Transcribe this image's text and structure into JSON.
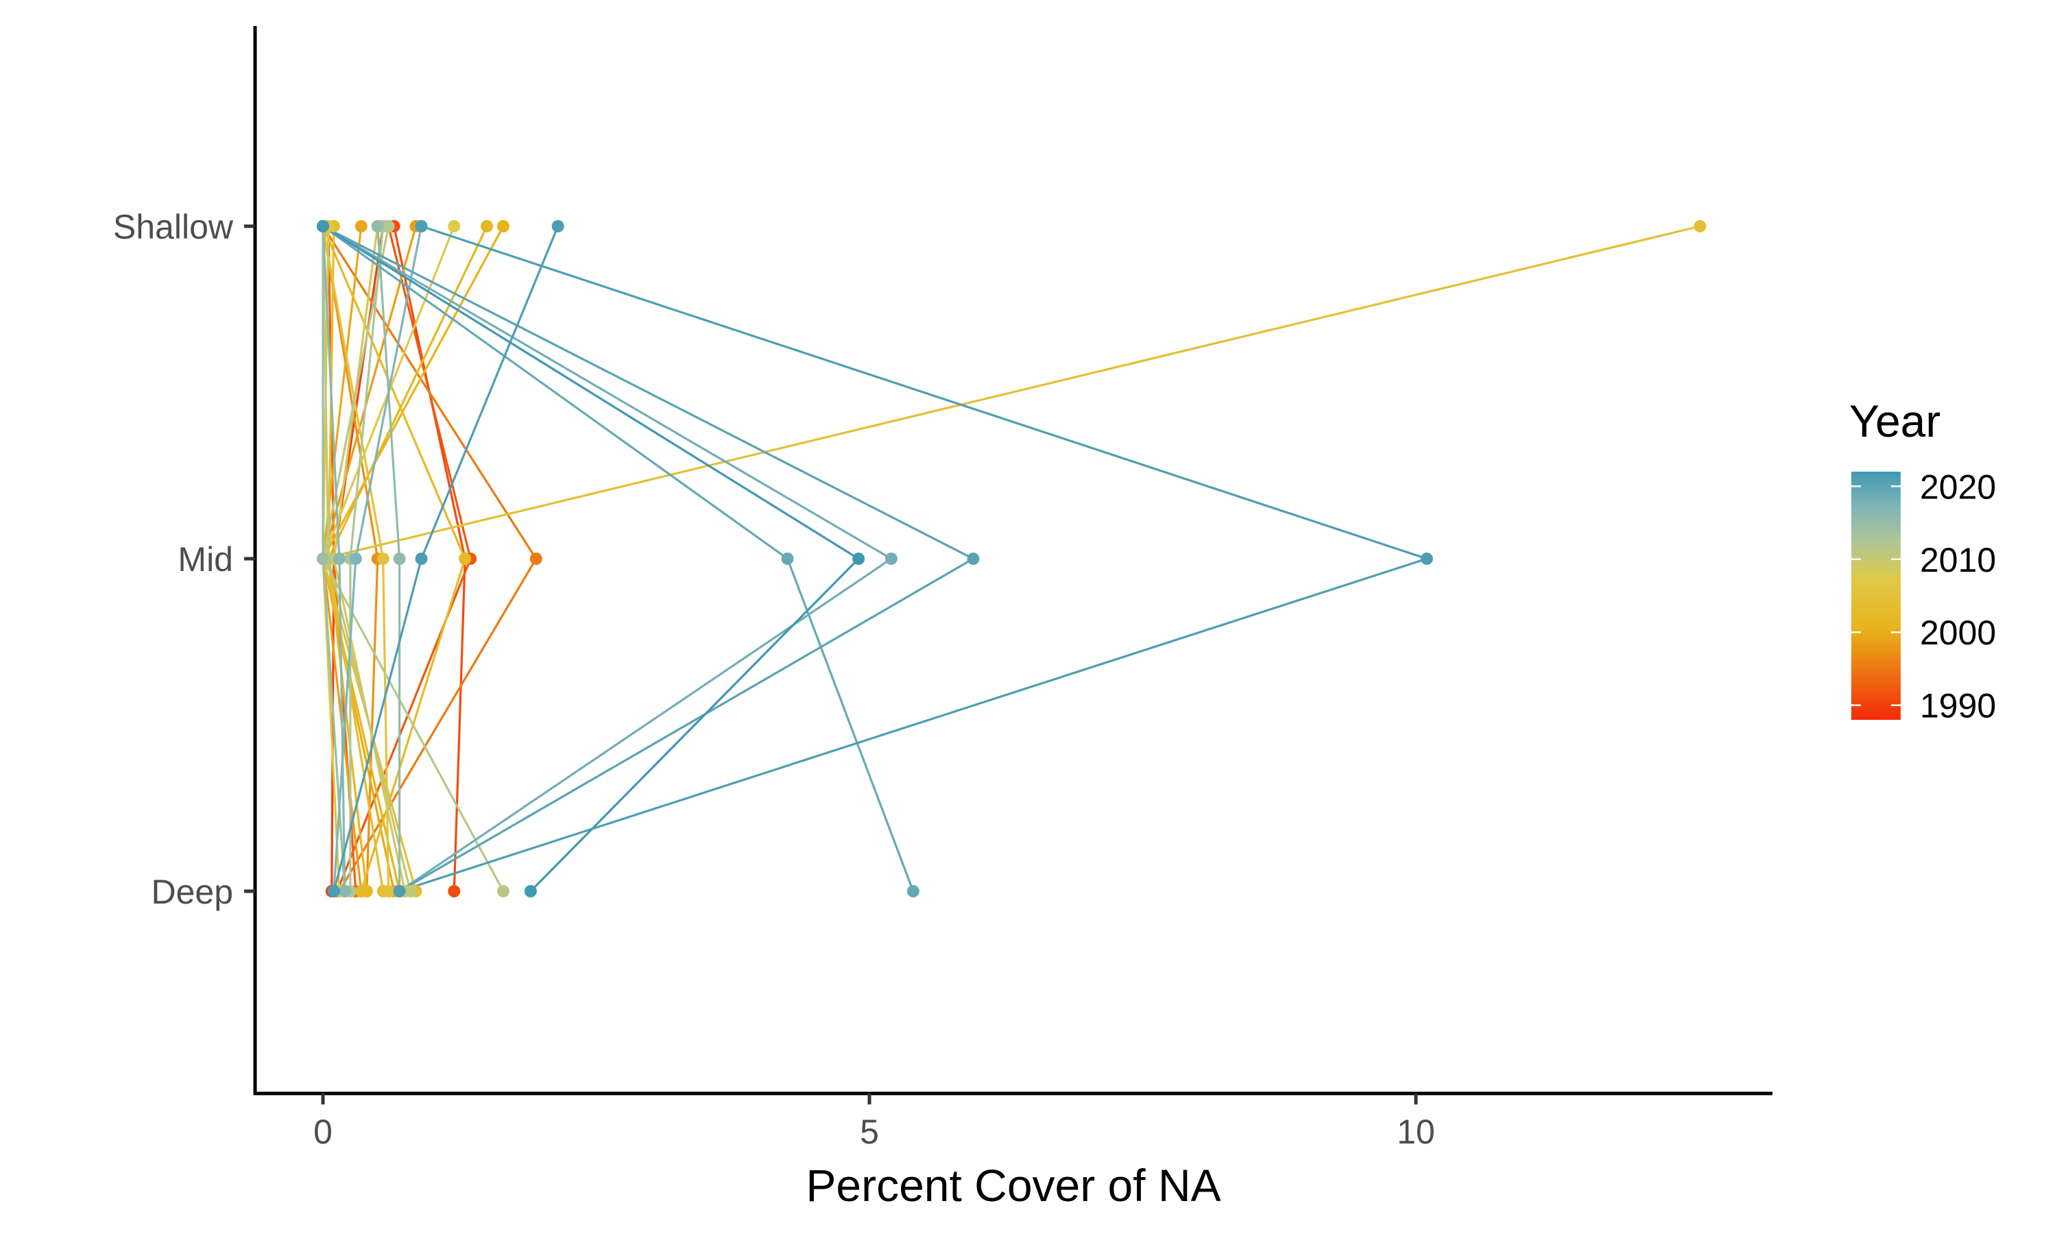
{
  "chart_data": {
    "type": "line",
    "title": "",
    "xlabel": "Percent Cover of NA",
    "ylabel": "",
    "x_ticks": [
      0,
      5,
      10
    ],
    "xlim": [
      -0.64,
      13.3
    ],
    "y_categories": [
      "Deep",
      "Mid",
      "Shallow"
    ],
    "grid": false,
    "legend": {
      "title": "Year",
      "placement": "right",
      "type": "colorbar",
      "ticks": [
        2020,
        2010,
        2000,
        1990
      ],
      "range": [
        1988,
        2022
      ],
      "colors": {
        "1990": "#f33a0e",
        "2000": "#e8a718",
        "2010": "#d9cc62",
        "2020": "#4da0b5"
      }
    },
    "series": [
      {
        "year": 1990,
        "shallow": 0.55,
        "mid": 0.1,
        "deep": 0.08
      },
      {
        "year": 1991,
        "shallow": 0.65,
        "mid": 1.3,
        "deep": 1.2
      },
      {
        "year": 1992,
        "shallow": 0.6,
        "mid": 1.35,
        "deep": 0.13
      },
      {
        "year": 1993,
        "shallow": 0.05,
        "mid": 0.1,
        "deep": 0.3
      },
      {
        "year": 1995,
        "shallow": 0.0,
        "mid": 1.95,
        "deep": 0.15
      },
      {
        "year": 1997,
        "shallow": 0.0,
        "mid": 0.5,
        "deep": 0.4
      },
      {
        "year": 1998,
        "shallow": 0.85,
        "mid": 0.0,
        "deep": 0.35
      },
      {
        "year": 1999,
        "shallow": 0.35,
        "mid": 0.0,
        "deep": 0.65
      },
      {
        "year": 2000,
        "shallow": 1.65,
        "mid": 0.0,
        "deep": 0.7
      },
      {
        "year": 2001,
        "shallow": 1.5,
        "mid": 0.05,
        "deep": 0.4
      },
      {
        "year": 2002,
        "shallow": 0.0,
        "mid": 1.3,
        "deep": 0.35
      },
      {
        "year": 2003,
        "shallow": 0.1,
        "mid": 0.05,
        "deep": 0.55
      },
      {
        "year": 2004,
        "shallow": 12.6,
        "mid": 0.0,
        "deep": 0.85
      },
      {
        "year": 2005,
        "shallow": 0.0,
        "mid": 0.55,
        "deep": 0.6
      },
      {
        "year": 2006,
        "shallow": 0.05,
        "mid": 0.0,
        "deep": 0.15
      },
      {
        "year": 2007,
        "shallow": 1.2,
        "mid": 0.0,
        "deep": 0.2
      },
      {
        "year": 2008,
        "shallow": 0.5,
        "mid": 0.1,
        "deep": 0.75
      },
      {
        "year": 2010,
        "shallow": 0.0,
        "mid": 0.05,
        "deep": 0.8
      },
      {
        "year": 2011,
        "shallow": 0.6,
        "mid": 0.0,
        "deep": 1.65
      },
      {
        "year": 2012,
        "shallow": 0.55,
        "mid": 0.25,
        "deep": 0.25
      },
      {
        "year": 2014,
        "shallow": 0.0,
        "mid": 0.0,
        "deep": 0.2
      },
      {
        "year": 2015,
        "shallow": 0.5,
        "mid": 0.7,
        "deep": 0.7
      },
      {
        "year": 2016,
        "shallow": 0.0,
        "mid": 0.15,
        "deep": 0.2
      },
      {
        "year": 2017,
        "shallow": 0.9,
        "mid": 0.3,
        "deep": 0.1
      },
      {
        "year": 2018,
        "shallow": 0.0,
        "mid": 5.2,
        "deep": 0.7
      },
      {
        "year": 2019,
        "shallow": 0.0,
        "mid": 4.25,
        "deep": 5.4
      },
      {
        "year": 2020,
        "shallow": 0.0,
        "mid": 5.95,
        "deep": 0.7
      },
      {
        "year": 2021,
        "shallow": 0.9,
        "mid": 10.1,
        "deep": 0.7
      },
      {
        "year": 2021,
        "shallow": 2.15,
        "mid": 0.9,
        "deep": 0.1
      },
      {
        "year": 2022,
        "shallow": 0.0,
        "mid": 4.9,
        "deep": 1.9
      }
    ]
  }
}
